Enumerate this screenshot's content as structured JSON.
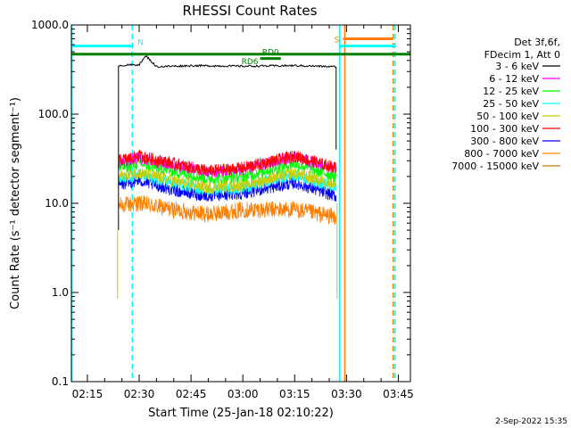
{
  "chart_data": {
    "type": "line",
    "title": "RHESSI Count Rates",
    "xlabel": "Start Time (25-Jan-18 02:10:22)",
    "ylabel": "Count Rate (s⁻¹ detector segment⁻¹)",
    "y_scale": "log",
    "ylim": [
      0.1,
      1000.0
    ],
    "xlim": [
      "02:10:22",
      "03:48:30"
    ],
    "x_ticks": [
      "02:15",
      "02:30",
      "02:45",
      "03:00",
      "03:15",
      "03:30",
      "03:45"
    ],
    "y_ticks": [
      "0.1",
      "1.0",
      "10.0",
      "100.0",
      "1000.0"
    ],
    "legend": {
      "placement": "right",
      "header": [
        "Det 3f,6f,",
        "FDecim 1, Att 0"
      ]
    },
    "series": [
      {
        "name": "3 - 6 keV",
        "color": "#000000",
        "x": [
          "02:24",
          "02:30",
          "02:32",
          "02:35",
          "02:45",
          "03:00",
          "03:15",
          "03:27"
        ],
        "y": [
          350,
          360,
          450,
          340,
          350,
          345,
          350,
          340
        ]
      },
      {
        "name": "6 - 12 keV",
        "color": "#ff00ff",
        "x": [
          "02:24",
          "02:30",
          "02:40",
          "02:50",
          "03:00",
          "03:15",
          "03:27"
        ],
        "y": [
          29,
          32,
          27,
          22,
          24,
          33,
          24
        ]
      },
      {
        "name": "12 - 25 keV",
        "color": "#00ff00",
        "x": [
          "02:24",
          "02:30",
          "02:40",
          "02:50",
          "03:00",
          "03:15",
          "03:27"
        ],
        "y": [
          25,
          28,
          23,
          19,
          20,
          28,
          20
        ]
      },
      {
        "name": "25 - 50 keV",
        "color": "#00ffff",
        "x": [
          "02:24",
          "02:30",
          "02:40",
          "02:50",
          "03:00",
          "03:15",
          "03:27"
        ],
        "y": [
          19,
          21,
          17,
          14,
          15,
          21,
          15
        ]
      },
      {
        "name": "50 - 100 keV",
        "color": "#cccc00",
        "x": [
          "02:24",
          "02:30",
          "02:40",
          "02:50",
          "03:00",
          "03:15",
          "03:27"
        ],
        "y": [
          20,
          22,
          18,
          15,
          16,
          22,
          16
        ]
      },
      {
        "name": "100 - 300 keV",
        "color": "#ff0000",
        "x": [
          "02:24",
          "02:30",
          "02:40",
          "02:50",
          "03:00",
          "03:15",
          "03:27"
        ],
        "y": [
          30,
          34,
          28,
          23,
          25,
          34,
          25
        ]
      },
      {
        "name": "300 - 800 keV",
        "color": "#0000ff",
        "x": [
          "02:24",
          "02:30",
          "02:40",
          "02:50",
          "03:00",
          "03:15",
          "03:27"
        ],
        "y": [
          16,
          18,
          14,
          12,
          13,
          17,
          12
        ]
      },
      {
        "name": "800 - 7000 keV",
        "color": "#ff8000",
        "x": [
          "02:24",
          "02:30",
          "02:40",
          "02:50",
          "03:00",
          "03:15",
          "03:27"
        ],
        "y": [
          9.5,
          10,
          8.5,
          7.5,
          8.5,
          8.5,
          7
        ]
      },
      {
        "name": "7000 - 15000 keV",
        "color": "#b87800",
        "x": [],
        "y": []
      }
    ],
    "bars": [
      {
        "name": "N",
        "color": "#00ffff",
        "y": 580,
        "x_start": "02:10:22",
        "x_end": "02:28:00"
      },
      {
        "name": "S",
        "color": "#00ffff",
        "y": 580,
        "x_start": "03:28:00",
        "x_end": "03:44:00"
      },
      {
        "name": "S",
        "color": "#ff8000",
        "y": 700,
        "x_start": "03:29:00",
        "x_end": "03:43:30"
      },
      {
        "name": "RD0",
        "color": "#008000",
        "y": 420,
        "x_start": "03:05:00",
        "x_end": "03:11:00"
      },
      {
        "name": "RD6",
        "color": "#008000",
        "y": 470,
        "x_start": "02:10:22",
        "x_end": "03:48:30"
      }
    ],
    "vertical_lines": [
      {
        "color": "#00ffff",
        "style": "solid",
        "x": "02:10:30"
      },
      {
        "color": "#00ffff",
        "style": "dashed",
        "x": "02:28:00"
      },
      {
        "color": "#00ffff",
        "style": "solid",
        "x": "03:28:00"
      },
      {
        "color": "#ff8000",
        "style": "solid",
        "x": "03:29:30"
      },
      {
        "color": "#ff8000",
        "style": "dashed",
        "x": "03:43:30"
      },
      {
        "color": "#00ffff",
        "style": "dashed",
        "x": "03:44:00"
      }
    ],
    "footer_timestamp": "2-Sep-2022 15:35"
  }
}
